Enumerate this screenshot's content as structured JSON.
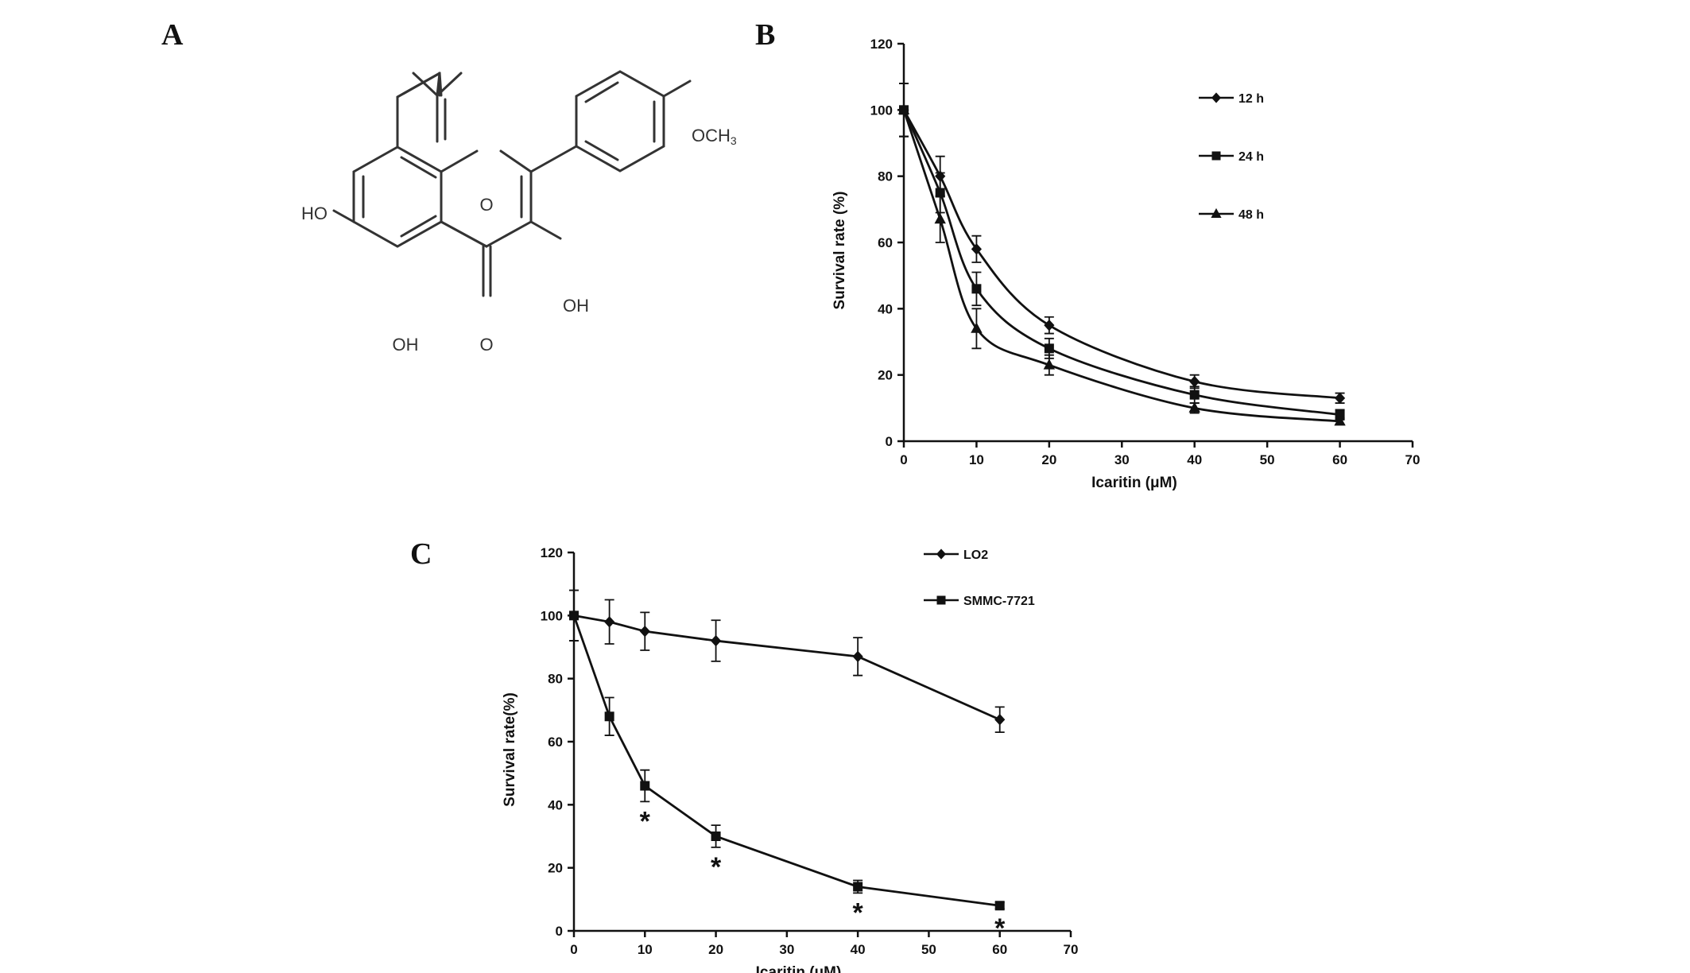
{
  "panels": {
    "a": "A",
    "b": "B",
    "c": "C"
  },
  "molecule": {
    "labels": {
      "och3": "OCH",
      "och3_sub": "3",
      "ho": "HO",
      "oh_bottom": "OH",
      "oh_right": "OH",
      "o_ring": "O",
      "o_carbonyl": "O"
    }
  },
  "chart_data": [
    {
      "id": "B",
      "type": "line",
      "xlabel": "Icaritin (μM)",
      "ylabel": "Survival rate  (%)",
      "xlim": [
        0,
        70
      ],
      "ylim": [
        0,
        120
      ],
      "xticks": [
        0,
        10,
        20,
        30,
        40,
        50,
        60,
        70
      ],
      "yticks": [
        0,
        20,
        40,
        60,
        80,
        100,
        120
      ],
      "legend_position": "top-right",
      "series": [
        {
          "name": "12 h",
          "marker": "diamond",
          "x": [
            0,
            5,
            10,
            20,
            40,
            60
          ],
          "y": [
            100,
            80,
            58,
            35,
            18,
            13
          ],
          "err": [
            8,
            6,
            4,
            2.5,
            2,
            1.5
          ]
        },
        {
          "name": "24 h",
          "marker": "square",
          "x": [
            0,
            5,
            10,
            20,
            40,
            60
          ],
          "y": [
            100,
            75,
            46,
            28,
            14,
            8
          ],
          "err": [
            8,
            6,
            5,
            3,
            2.5,
            1.5
          ]
        },
        {
          "name": "48 h",
          "marker": "triangle",
          "x": [
            0,
            5,
            10,
            20,
            40,
            60
          ],
          "y": [
            100,
            67,
            34,
            23,
            10,
            6
          ],
          "err": [
            8,
            7,
            6,
            3,
            1.5,
            1
          ]
        }
      ]
    },
    {
      "id": "C",
      "type": "line",
      "xlabel": "Icaritin (μM)",
      "ylabel": "Survival rate(%)",
      "xlim": [
        0,
        70
      ],
      "ylim": [
        0,
        120
      ],
      "xticks": [
        0,
        10,
        20,
        30,
        40,
        50,
        60,
        70
      ],
      "yticks": [
        0,
        20,
        40,
        60,
        80,
        100,
        120
      ],
      "legend_position": "top-right",
      "significance_marker": "*",
      "series": [
        {
          "name": "LO2",
          "marker": "diamond",
          "x": [
            0,
            5,
            10,
            20,
            40,
            60
          ],
          "y": [
            100,
            98,
            95,
            92,
            87,
            67
          ],
          "err": [
            8,
            7,
            6,
            6.5,
            6,
            4
          ]
        },
        {
          "name": "SMMC-7721",
          "marker": "square",
          "x": [
            0,
            5,
            10,
            20,
            40,
            60
          ],
          "y": [
            100,
            68,
            46,
            30,
            14,
            8
          ],
          "err": [
            8,
            6,
            5,
            3.5,
            2,
            1
          ],
          "significant_at": [
            10,
            20,
            40,
            60
          ]
        }
      ]
    }
  ]
}
